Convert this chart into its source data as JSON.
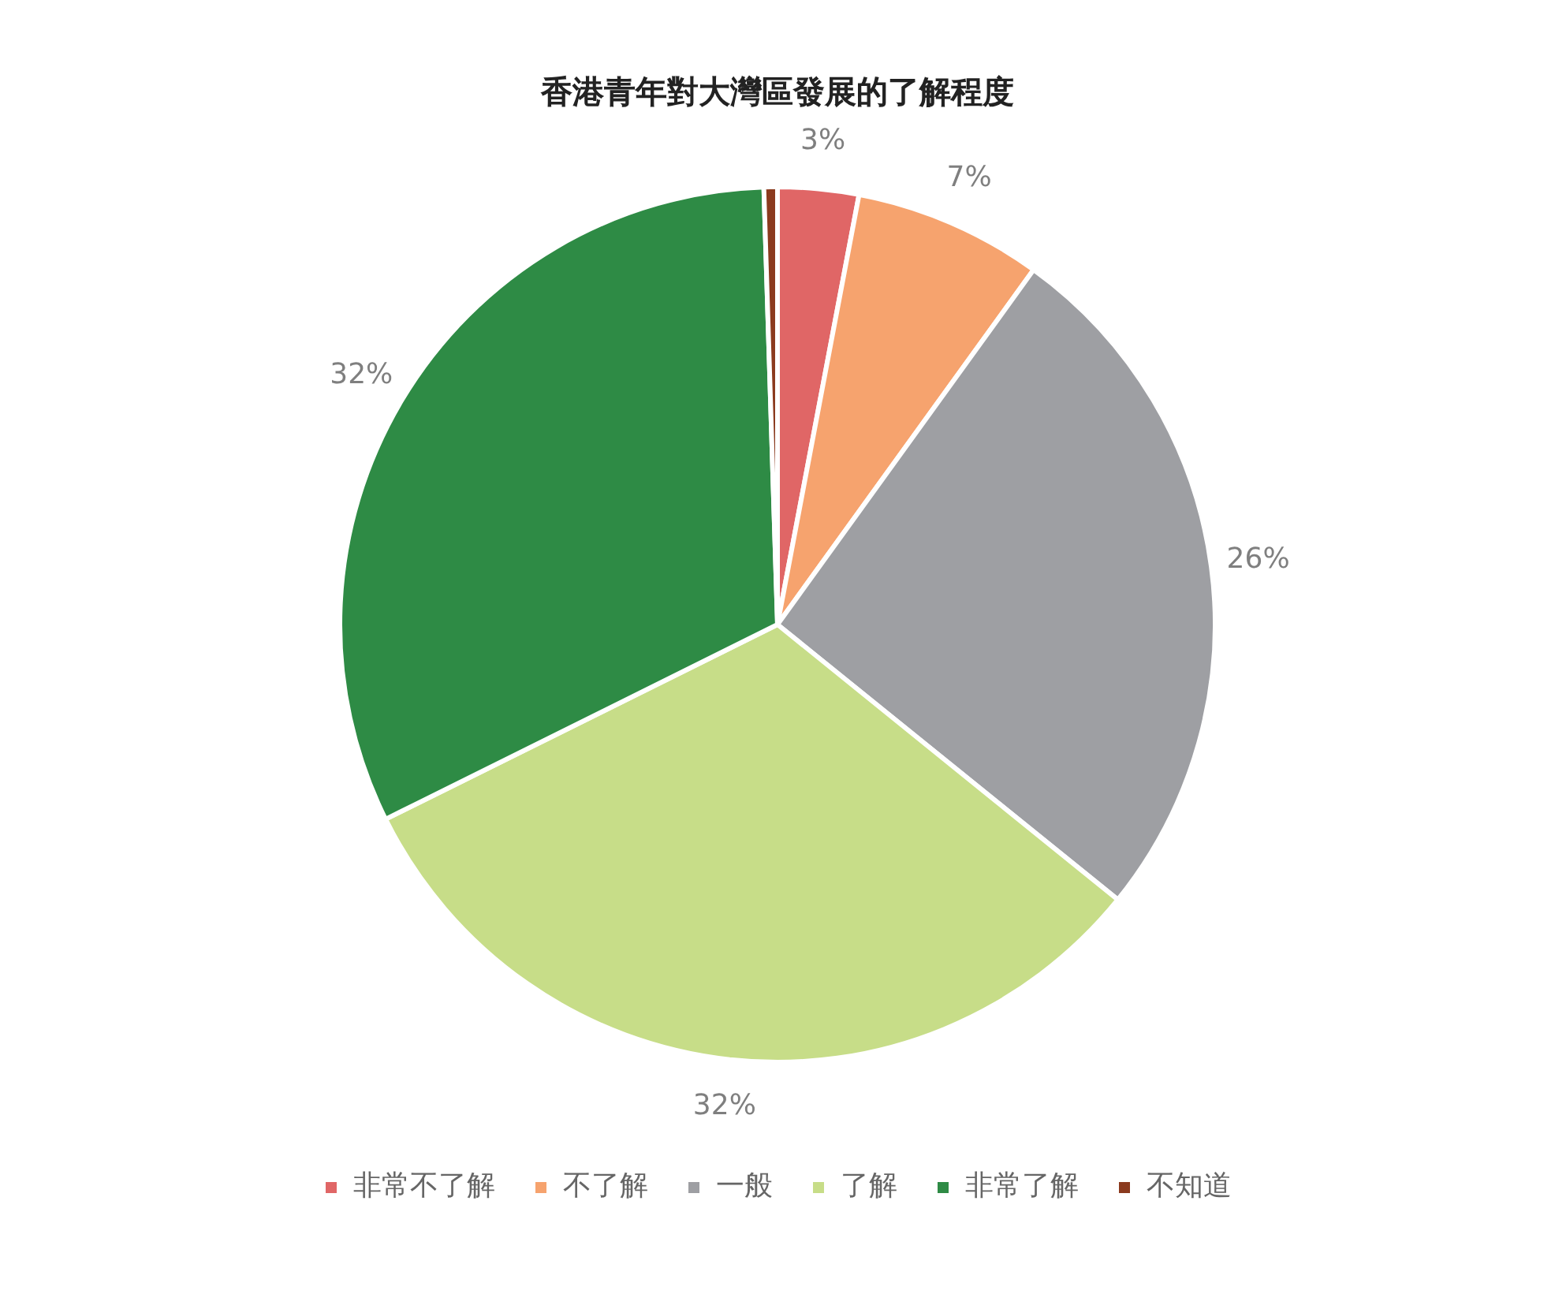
{
  "chart_data": {
    "type": "pie",
    "title": "香港青年對大灣區發展的了解程度",
    "categories": [
      "非常不了解",
      "不了解",
      "一般",
      "了解",
      "非常了解",
      "不知道"
    ],
    "values": [
      3,
      7,
      26,
      32,
      32,
      0.5
    ],
    "colors": [
      "#e06666",
      "#f6a36e",
      "#9e9fa3",
      "#c7dd88",
      "#2e8b45",
      "#8b3a1e"
    ],
    "value_labels": [
      "3%",
      "7%",
      "26%",
      "32%",
      "32%",
      null
    ],
    "legend": "bottom"
  }
}
